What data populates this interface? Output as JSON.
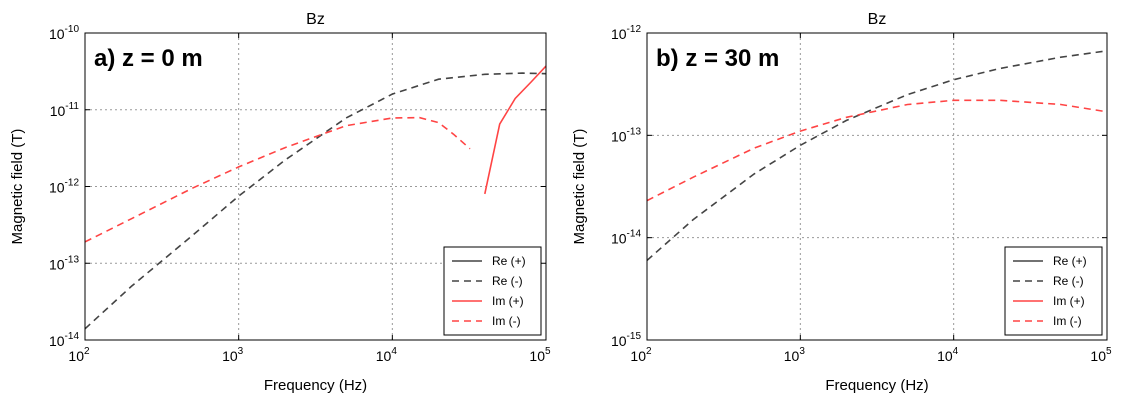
{
  "chart_data": [
    {
      "type": "line",
      "title": "Bz",
      "panel_label": "a) z = 0 m",
      "xlabel": "Frequency (Hz)",
      "ylabel": "Magnetic field (T)",
      "xscale": "log",
      "yscale": "log",
      "xlim": [
        100,
        100000
      ],
      "ylim": [
        1e-14,
        1e-10
      ],
      "xticks": [
        {
          "base": "10",
          "exp": "2"
        },
        {
          "base": "10",
          "exp": "3"
        },
        {
          "base": "10",
          "exp": "4"
        },
        {
          "base": "10",
          "exp": "5"
        }
      ],
      "yticks": [
        {
          "base": "10",
          "exp": "-14"
        },
        {
          "base": "10",
          "exp": "-13"
        },
        {
          "base": "10",
          "exp": "-12"
        },
        {
          "base": "10",
          "exp": "-11"
        },
        {
          "base": "10",
          "exp": "-10"
        }
      ],
      "grid": true,
      "legend": {
        "placement": "lower-right",
        "entries": [
          "Re (+)",
          "Re (-)",
          "Im (+)",
          "Im (-)"
        ]
      },
      "series": [
        {
          "name": "Re (+)",
          "color": "#444444",
          "dash": "solid",
          "x": [],
          "y": []
        },
        {
          "name": "Re (-)",
          "color": "#444444",
          "dash": "dashed",
          "x": [
            100,
            200,
            500,
            1000,
            2000,
            5000,
            10000,
            20000,
            40000,
            70000,
            100000
          ],
          "y": [
            1.4e-14,
            5e-14,
            2.3e-13,
            7.5e-13,
            2.2e-12,
            7.8e-12,
            1.6e-11,
            2.5e-11,
            2.9e-11,
            3e-11,
            2.95e-11
          ]
        },
        {
          "name": "Im (+)",
          "color": "#ff4444",
          "dash": "solid",
          "x": [
            40000,
            50000,
            63000,
            80000,
            100000
          ],
          "y": [
            8e-13,
            6.5e-12,
            1.4e-11,
            2.3e-11,
            3.7e-11
          ]
        },
        {
          "name": "Im (-)",
          "color": "#ff4444",
          "dash": "dashed",
          "x": [
            100,
            200,
            500,
            1000,
            2000,
            5000,
            10000,
            15000,
            20000,
            25000,
            32000
          ],
          "y": [
            1.9e-13,
            3.8e-13,
            9.5e-13,
            1.8e-12,
            3.2e-12,
            6.2e-12,
            7.8e-12,
            7.9e-12,
            6.8e-12,
            4.8e-12,
            3.1e-12
          ]
        }
      ]
    },
    {
      "type": "line",
      "title": "Bz",
      "panel_label": "b) z = 30 m",
      "xlabel": "Frequency (Hz)",
      "ylabel": "Magnetic field (T)",
      "xscale": "log",
      "yscale": "log",
      "xlim": [
        100,
        100000
      ],
      "ylim": [
        1e-15,
        1e-12
      ],
      "xticks": [
        {
          "base": "10",
          "exp": "2"
        },
        {
          "base": "10",
          "exp": "3"
        },
        {
          "base": "10",
          "exp": "4"
        },
        {
          "base": "10",
          "exp": "5"
        }
      ],
      "yticks": [
        {
          "base": "10",
          "exp": "-15"
        },
        {
          "base": "10",
          "exp": "-14"
        },
        {
          "base": "10",
          "exp": "-13"
        },
        {
          "base": "10",
          "exp": "-12"
        }
      ],
      "grid": true,
      "legend": {
        "placement": "lower-right",
        "entries": [
          "Re (+)",
          "Re (-)",
          "Im (+)",
          "Im (-)"
        ]
      },
      "series": [
        {
          "name": "Re (+)",
          "color": "#444444",
          "dash": "solid",
          "x": [],
          "y": []
        },
        {
          "name": "Re (-)",
          "color": "#444444",
          "dash": "dashed",
          "x": [
            100,
            200,
            500,
            1000,
            2000,
            5000,
            10000,
            20000,
            50000,
            100000
          ],
          "y": [
            6e-15,
            1.5e-14,
            4.2e-14,
            8e-14,
            1.4e-13,
            2.5e-13,
            3.5e-13,
            4.5e-13,
            5.8e-13,
            6.7e-13
          ]
        },
        {
          "name": "Im (+)",
          "color": "#ff4444",
          "dash": "solid",
          "x": [],
          "y": []
        },
        {
          "name": "Im (-)",
          "color": "#ff4444",
          "dash": "dashed",
          "x": [
            100,
            200,
            500,
            1000,
            2000,
            5000,
            10000,
            20000,
            50000,
            100000
          ],
          "y": [
            2.3e-14,
            3.9e-14,
            7.5e-14,
            1.1e-13,
            1.5e-13,
            2e-13,
            2.2e-13,
            2.2e-13,
            2e-13,
            1.7e-13
          ]
        }
      ]
    }
  ]
}
